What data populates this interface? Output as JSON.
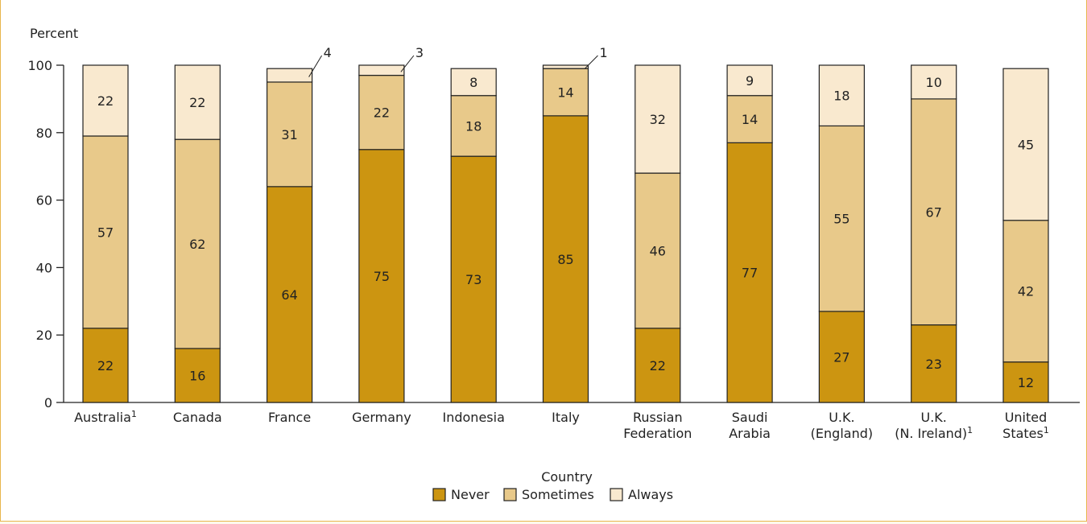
{
  "chart_data": {
    "type": "bar",
    "stacked": true,
    "ylabel": "Percent",
    "xlabel": "Country",
    "ylim": [
      0,
      100
    ],
    "yticks": [
      0,
      20,
      40,
      60,
      80,
      100
    ],
    "grid": false,
    "legend": "bottom-center",
    "categories": [
      {
        "lines": [
          "Australia"
        ],
        "sup": "1"
      },
      {
        "lines": [
          "Canada"
        ],
        "sup": ""
      },
      {
        "lines": [
          "France"
        ],
        "sup": ""
      },
      {
        "lines": [
          "Germany"
        ],
        "sup": ""
      },
      {
        "lines": [
          "Indonesia"
        ],
        "sup": ""
      },
      {
        "lines": [
          "Italy"
        ],
        "sup": ""
      },
      {
        "lines": [
          "Russian",
          "Federation"
        ],
        "sup": ""
      },
      {
        "lines": [
          "Saudi",
          "Arabia"
        ],
        "sup": ""
      },
      {
        "lines": [
          "U.K.",
          "(England)"
        ],
        "sup": ""
      },
      {
        "lines": [
          "U.K.",
          "(N. Ireland)"
        ],
        "sup": "1"
      },
      {
        "lines": [
          "United",
          "States"
        ],
        "sup": "1"
      }
    ],
    "series": [
      {
        "name": "Never",
        "color": "#cc9511",
        "values": [
          22,
          16,
          64,
          75,
          73,
          85,
          22,
          77,
          27,
          23,
          12
        ]
      },
      {
        "name": "Sometimes",
        "color": "#e8c98a",
        "values": [
          57,
          62,
          31,
          22,
          18,
          14,
          46,
          14,
          55,
          67,
          42
        ]
      },
      {
        "name": "Always",
        "color": "#f9e9cf",
        "values": [
          22,
          22,
          4,
          3,
          8,
          1,
          32,
          9,
          18,
          10,
          45
        ]
      }
    ],
    "callouts": [
      "2:2",
      "3:2",
      "5:2"
    ]
  }
}
